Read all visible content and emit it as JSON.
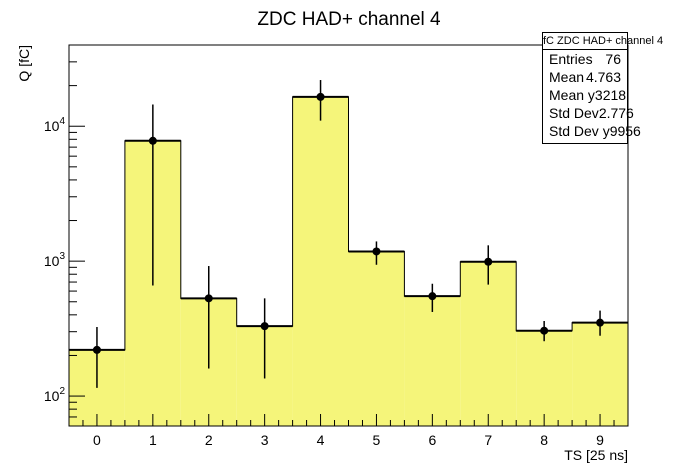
{
  "chart_data": {
    "type": "bar",
    "title": "ZDC HAD+ channel 4",
    "xlabel": "TS [25 ns]",
    "ylabel": "Q [fC]",
    "yscale": "log",
    "xlim": [
      -0.5,
      9.5
    ],
    "ylim": [
      60,
      40000
    ],
    "grid": false,
    "x_ticks": [
      "0",
      "1",
      "2",
      "3",
      "4",
      "5",
      "6",
      "7",
      "8",
      "9"
    ],
    "y_ticks": [
      {
        "value": 100,
        "base": "10",
        "exp": "2"
      },
      {
        "value": 1000,
        "base": "10",
        "exp": "3"
      },
      {
        "value": 10000,
        "base": "10",
        "exp": "4"
      }
    ],
    "fill_color": "#f5f57a",
    "line_color": "#000000",
    "series": [
      {
        "x": [
          0,
          1,
          2,
          3,
          4,
          5,
          6,
          7,
          8,
          9
        ],
        "values": [
          220,
          7800,
          530,
          330,
          16500,
          1180,
          550,
          990,
          305,
          350
        ],
        "err_low": [
          115,
          660,
          160,
          135,
          11000,
          940,
          420,
          670,
          255,
          280
        ],
        "err_high": [
          325,
          14500,
          920,
          530,
          22000,
          1400,
          680,
          1310,
          360,
          430
        ]
      }
    ]
  },
  "stats": {
    "title": "fC ZDC HAD+ channel 4",
    "rows": [
      {
        "label": "Entries",
        "value": "76"
      },
      {
        "label": "Mean",
        "value": "4.763"
      },
      {
        "label": "Mean y",
        "value": "3218"
      },
      {
        "label": "Std Dev",
        "value": "2.776"
      },
      {
        "label": "Std Dev y",
        "value": "9956"
      }
    ]
  }
}
